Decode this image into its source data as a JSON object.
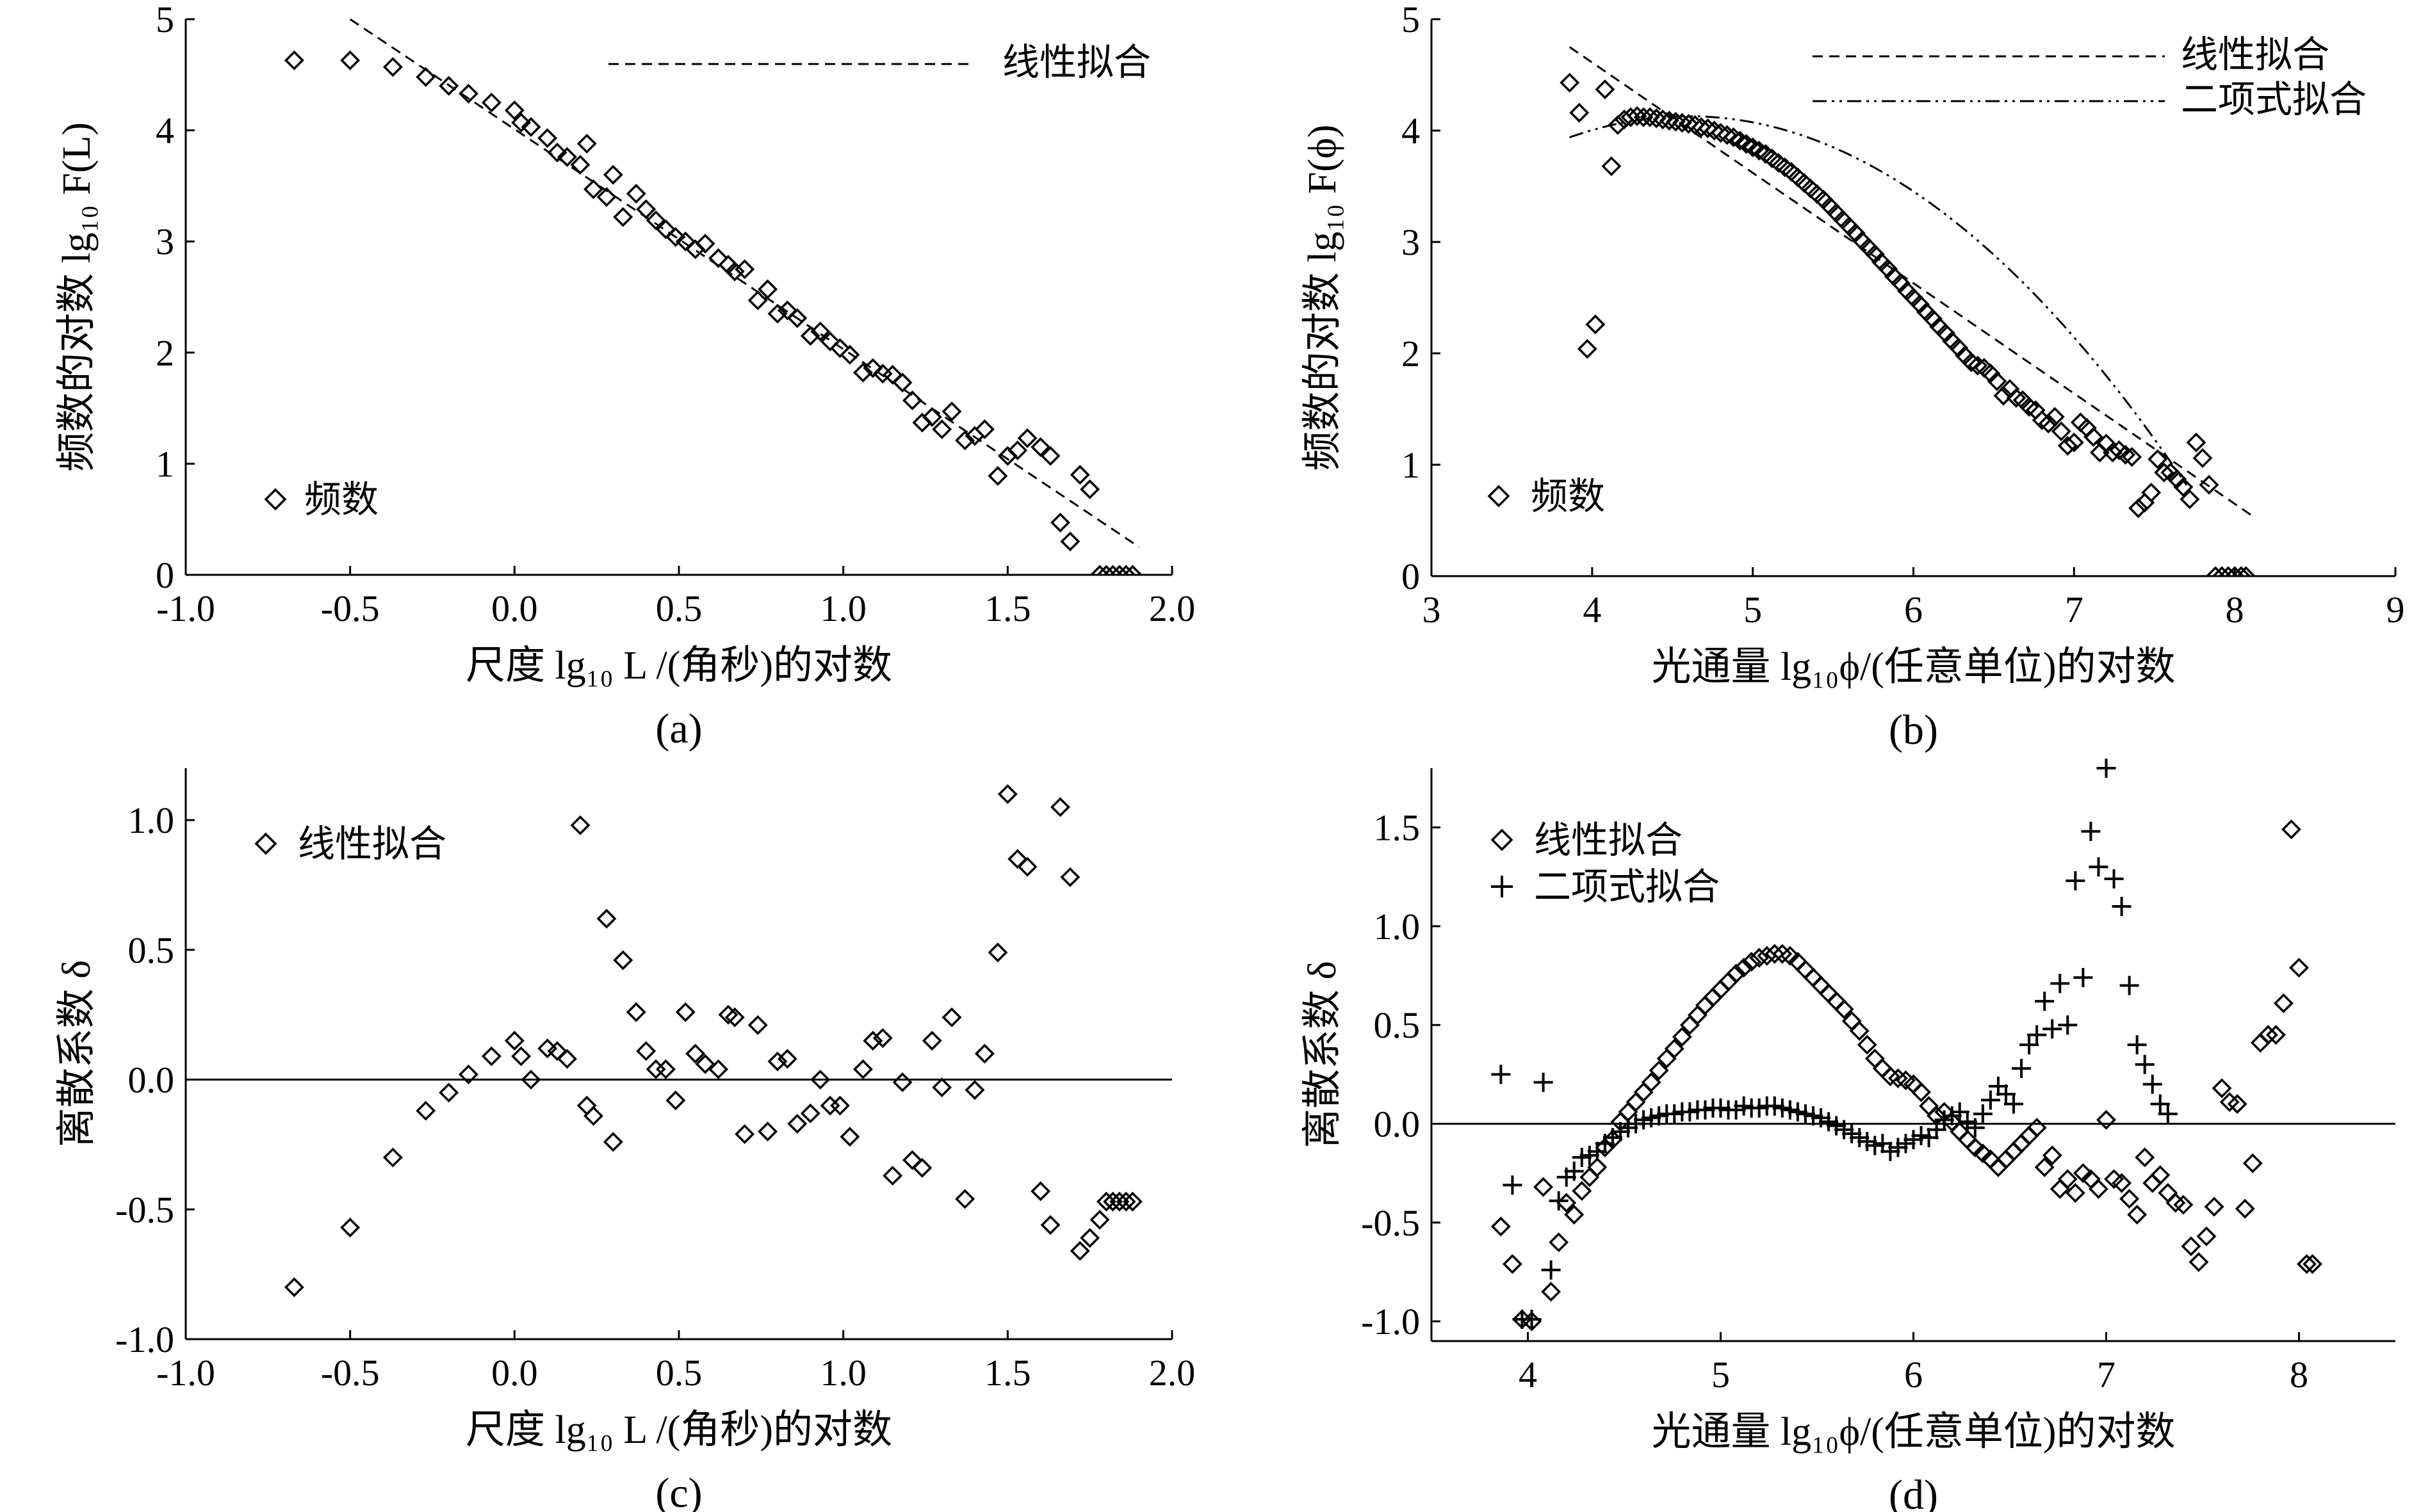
{
  "figure": {
    "panels": [
      {
        "id": "a",
        "caption": "(a)",
        "xlabel": "尺度 lg₁₀ L /(角秒)的对数",
        "ylabel": "频数的对数 lg₁₀ F(L)",
        "xticks": [
          "-1.0",
          "-0.5",
          "0.0",
          "0.5",
          "1.0",
          "1.5",
          "2.0"
        ],
        "yticks": [
          "0",
          "1",
          "2",
          "3",
          "4",
          "5"
        ],
        "legend": {
          "line": "线性拟合",
          "marker": "频数"
        }
      },
      {
        "id": "b",
        "caption": "(b)",
        "xlabel": "光通量 lg₁₀ϕ/(任意单位)的对数",
        "ylabel": "频数的对数 lg₁₀ F(ϕ)",
        "xticks": [
          "3",
          "4",
          "5",
          "6",
          "7",
          "8",
          "9"
        ],
        "yticks": [
          "0",
          "1",
          "2",
          "3",
          "4",
          "5"
        ],
        "legend": {
          "line": "线性拟合",
          "poly": "二项式拟合",
          "marker": "频数"
        }
      },
      {
        "id": "c",
        "caption": "(c)",
        "xlabel": "尺度 lg₁₀ L /(角秒)的对数",
        "ylabel": "离散系数 δ",
        "xticks": [
          "-1.0",
          "-0.5",
          "0.0",
          "0.5",
          "1.0",
          "1.5",
          "2.0"
        ],
        "yticks": [
          "-1.0",
          "-0.5",
          "0.0",
          "0.5",
          "1.0"
        ],
        "legend": {
          "marker": "线性拟合"
        }
      },
      {
        "id": "d",
        "caption": "(d)",
        "xlabel": "光通量 lg₁₀ϕ/(任意单位)的对数",
        "ylabel": "离散系数 δ",
        "xticks": [
          "4",
          "5",
          "6",
          "7",
          "8"
        ],
        "yticks": [
          "-1.0",
          "-0.5",
          "0.0",
          "0.5",
          "1.0",
          "1.5"
        ],
        "legend": {
          "diamond": "线性拟合",
          "plus": "二项式拟合"
        }
      }
    ]
  },
  "chart_data": [
    {
      "id": "a",
      "type": "scatter",
      "xlabel": "尺度 lg10 L /(角秒)的对数",
      "ylabel": "频数的对数 lg10 F(L)",
      "xlim": [
        -1.0,
        2.0
      ],
      "ylim": [
        0,
        5
      ],
      "series": [
        {
          "name": "频数",
          "marker": "diamond",
          "x": [
            -0.67,
            -0.5,
            -0.37,
            -0.27,
            -0.2,
            -0.14,
            -0.07,
            0.0,
            0.02,
            0.05,
            0.1,
            0.13,
            0.16,
            0.2,
            0.22,
            0.24,
            0.28,
            0.3,
            0.33,
            0.37,
            0.4,
            0.43,
            0.46,
            0.49,
            0.52,
            0.55,
            0.58,
            0.62,
            0.65,
            0.67,
            0.7,
            0.74,
            0.77,
            0.8,
            0.83,
            0.86,
            0.9,
            0.93,
            0.96,
            0.99,
            1.02,
            1.06,
            1.09,
            1.12,
            1.15,
            1.18,
            1.21,
            1.24,
            1.27,
            1.3,
            1.33,
            1.37,
            1.4,
            1.43,
            1.47,
            1.5,
            1.53,
            1.56,
            1.6,
            1.63,
            1.66,
            1.69,
            1.72,
            1.75,
            1.78,
            1.8,
            1.82,
            1.84,
            1.86,
            1.88
          ],
          "y": [
            4.63,
            4.63,
            4.57,
            4.48,
            4.4,
            4.33,
            4.25,
            4.18,
            4.07,
            4.03,
            3.93,
            3.8,
            3.76,
            3.69,
            3.88,
            3.47,
            3.4,
            3.6,
            3.22,
            3.43,
            3.29,
            3.19,
            3.11,
            3.04,
            3.0,
            2.93,
            2.98,
            2.85,
            2.79,
            2.73,
            2.75,
            2.47,
            2.57,
            2.35,
            2.38,
            2.31,
            2.15,
            2.19,
            2.1,
            2.04,
            1.98,
            1.82,
            1.86,
            1.81,
            1.8,
            1.73,
            1.57,
            1.37,
            1.42,
            1.31,
            1.47,
            1.21,
            1.25,
            1.31,
            0.89,
            1.07,
            1.12,
            1.23,
            1.15,
            1.07,
            0.47,
            0.3,
            0.9,
            0.77,
            0.0,
            0.0,
            0.0,
            0.0,
            0.0,
            0.0
          ]
        },
        {
          "name": "线性拟合",
          "type": "line",
          "style": "dashed",
          "x": [
            -0.5,
            1.9
          ],
          "y": [
            5.0,
            0.25
          ]
        }
      ]
    },
    {
      "id": "b",
      "type": "scatter",
      "xlabel": "光通量 lg10ϕ/(任意单位)的对数",
      "ylabel": "频数的对数 lg10 F(ϕ)",
      "xlim": [
        3,
        9
      ],
      "ylim": [
        0,
        5
      ],
      "series": [
        {
          "name": "频数",
          "marker": "diamond",
          "x": [
            3.86,
            3.92,
            3.97,
            4.02,
            4.08,
            4.12,
            4.16,
            4.2,
            4.24,
            4.28,
            4.32,
            4.36,
            4.4,
            4.44,
            4.48,
            4.52,
            4.56,
            4.6,
            4.64,
            4.68,
            4.72,
            4.76,
            4.8,
            4.84,
            4.88,
            4.92,
            4.96,
            5.0,
            5.04,
            5.08,
            5.12,
            5.16,
            5.2,
            5.24,
            5.28,
            5.32,
            5.36,
            5.4,
            5.44,
            5.48,
            5.52,
            5.56,
            5.6,
            5.64,
            5.68,
            5.72,
            5.76,
            5.8,
            5.84,
            5.88,
            5.92,
            5.96,
            6.0,
            6.04,
            6.08,
            6.12,
            6.16,
            6.2,
            6.24,
            6.28,
            6.32,
            6.36,
            6.4,
            6.44,
            6.48,
            6.52,
            6.56,
            6.6,
            6.64,
            6.68,
            6.72,
            6.76,
            6.8,
            6.84,
            6.88,
            6.92,
            6.96,
            7.0,
            7.04,
            7.08,
            7.12,
            7.16,
            7.2,
            7.24,
            7.28,
            7.32,
            7.36,
            7.4,
            7.44,
            7.48,
            7.52,
            7.56,
            7.6,
            7.64,
            7.68,
            7.72,
            7.76,
            7.8,
            7.84,
            7.88,
            7.92,
            7.96,
            8.0,
            8.04,
            8.07
          ],
          "y": [
            4.43,
            4.16,
            2.04,
            2.26,
            4.37,
            3.68,
            4.05,
            4.1,
            4.12,
            4.13,
            4.12,
            4.12,
            4.11,
            4.1,
            4.09,
            4.08,
            4.07,
            4.06,
            4.05,
            4.03,
            4.02,
            4.0,
            3.98,
            3.96,
            3.94,
            3.91,
            3.88,
            3.85,
            3.82,
            3.79,
            3.75,
            3.71,
            3.67,
            3.63,
            3.58,
            3.53,
            3.48,
            3.43,
            3.38,
            3.32,
            3.26,
            3.2,
            3.14,
            3.08,
            3.01,
            2.95,
            2.89,
            2.82,
            2.76,
            2.69,
            2.63,
            2.56,
            2.5,
            2.44,
            2.37,
            2.31,
            2.24,
            2.18,
            2.11,
            2.05,
            1.98,
            1.92,
            1.89,
            1.87,
            1.82,
            1.75,
            1.62,
            1.68,
            1.6,
            1.58,
            1.52,
            1.49,
            1.4,
            1.37,
            1.43,
            1.3,
            1.17,
            1.2,
            1.38,
            1.33,
            1.25,
            1.11,
            1.19,
            1.11,
            1.13,
            1.09,
            1.07,
            0.61,
            0.66,
            0.75,
            1.05,
            0.93,
            0.93,
            0.87,
            0.8,
            0.69,
            1.2,
            1.06,
            0.82,
            0.0,
            0.0,
            0.0,
            0.0,
            0.0,
            0.0
          ]
        },
        {
          "name": "线性拟合",
          "type": "line",
          "style": "dashed",
          "x": [
            3.86,
            8.1
          ],
          "y": [
            4.75,
            0.55
          ]
        },
        {
          "name": "二项式拟合",
          "type": "curve",
          "style": "dashdotdot",
          "coefficients": [
            -0.345,
            3.175,
            -3.176
          ]
        }
      ]
    },
    {
      "id": "c",
      "type": "scatter",
      "xlabel": "尺度 lg10 L /(角秒)的对数",
      "ylabel": "离散系数 δ",
      "xlim": [
        -1.0,
        2.0
      ],
      "ylim": [
        -1.0,
        1.2
      ],
      "series": [
        {
          "name": "线性拟合",
          "marker": "diamond",
          "x": [
            -0.67,
            -0.5,
            -0.37,
            -0.27,
            -0.2,
            -0.14,
            -0.07,
            0.0,
            0.02,
            0.05,
            0.1,
            0.13,
            0.16,
            0.2,
            0.22,
            0.24,
            0.28,
            0.3,
            0.33,
            0.37,
            0.4,
            0.43,
            0.46,
            0.49,
            0.52,
            0.55,
            0.58,
            0.62,
            0.65,
            0.67,
            0.7,
            0.74,
            0.77,
            0.8,
            0.83,
            0.86,
            0.9,
            0.93,
            0.96,
            0.99,
            1.02,
            1.06,
            1.09,
            1.12,
            1.15,
            1.18,
            1.21,
            1.24,
            1.27,
            1.3,
            1.33,
            1.37,
            1.4,
            1.43,
            1.47,
            1.5,
            1.53,
            1.56,
            1.6,
            1.63,
            1.66,
            1.69,
            1.72,
            1.75,
            1.78,
            1.8,
            1.82,
            1.84,
            1.86,
            1.88
          ],
          "y": [
            -0.8,
            -0.57,
            -0.3,
            -0.12,
            -0.05,
            0.02,
            0.09,
            0.15,
            0.09,
            0.0,
            0.12,
            0.11,
            0.08,
            0.98,
            -0.1,
            -0.14,
            0.62,
            -0.24,
            0.46,
            0.26,
            0.11,
            0.04,
            0.04,
            -0.08,
            0.26,
            0.1,
            0.06,
            0.04,
            0.25,
            0.24,
            -0.21,
            0.21,
            -0.2,
            0.07,
            0.08,
            -0.17,
            -0.13,
            0.0,
            -0.1,
            -0.1,
            -0.22,
            0.04,
            0.15,
            0.16,
            -0.37,
            -0.01,
            -0.31,
            -0.34,
            0.15,
            -0.03,
            0.24,
            -0.46,
            -0.04,
            0.1,
            0.49,
            1.1,
            0.85,
            0.82,
            -0.43,
            -0.56,
            1.05,
            0.78,
            -0.66,
            -0.61,
            -0.54,
            -0.47,
            -0.47,
            -0.47,
            -0.47,
            -0.47
          ]
        }
      ]
    },
    {
      "id": "d",
      "type": "scatter",
      "xlabel": "光通量 lg10ϕ/(任意单位)的对数",
      "ylabel": "离散系数 δ",
      "xlim": [
        3.5,
        8.5
      ],
      "ylim": [
        -1.1,
        1.8
      ],
      "series": [
        {
          "name": "线性拟合",
          "marker": "diamond",
          "x": [
            3.86,
            3.92,
            3.97,
            4.02,
            4.08,
            4.12,
            4.16,
            4.2,
            4.24,
            4.28,
            4.32,
            4.36,
            4.4,
            4.44,
            4.48,
            4.52,
            4.56,
            4.6,
            4.64,
            4.68,
            4.72,
            4.76,
            4.8,
            4.84,
            4.88,
            4.92,
            4.96,
            5.0,
            5.04,
            5.08,
            5.12,
            5.16,
            5.2,
            5.24,
            5.28,
            5.32,
            5.36,
            5.4,
            5.44,
            5.48,
            5.52,
            5.56,
            5.6,
            5.64,
            5.68,
            5.72,
            5.76,
            5.8,
            5.84,
            5.88,
            5.92,
            5.96,
            6.0,
            6.04,
            6.08,
            6.12,
            6.16,
            6.2,
            6.24,
            6.28,
            6.32,
            6.36,
            6.4,
            6.44,
            6.48,
            6.52,
            6.56,
            6.6,
            6.64,
            6.68,
            6.72,
            6.76,
            6.8,
            6.84,
            6.88,
            6.92,
            6.96,
            7.0,
            7.04,
            7.08,
            7.12,
            7.16,
            7.2,
            7.24,
            7.28,
            7.32,
            7.36,
            7.4,
            7.44,
            7.48,
            7.52,
            7.56,
            7.6,
            7.64,
            7.68,
            7.72,
            7.76,
            7.8,
            7.84,
            7.88,
            7.92,
            7.96,
            8.0,
            8.04,
            8.07
          ],
          "y": [
            -0.52,
            -0.71,
            -0.99,
            -1.0,
            -0.32,
            -0.85,
            -0.6,
            -0.4,
            -0.46,
            -0.34,
            -0.27,
            -0.22,
            -0.12,
            -0.08,
            0.01,
            0.06,
            0.11,
            0.16,
            0.21,
            0.27,
            0.33,
            0.38,
            0.44,
            0.5,
            0.55,
            0.6,
            0.64,
            0.68,
            0.72,
            0.76,
            0.79,
            0.82,
            0.84,
            0.85,
            0.86,
            0.86,
            0.85,
            0.82,
            0.78,
            0.74,
            0.7,
            0.66,
            0.62,
            0.58,
            0.52,
            0.47,
            0.4,
            0.33,
            0.28,
            0.24,
            0.23,
            0.22,
            0.2,
            0.16,
            0.09,
            0.04,
            0.06,
            0.01,
            -0.04,
            -0.08,
            -0.12,
            -0.15,
            -0.18,
            -0.22,
            -0.18,
            -0.14,
            -0.1,
            -0.06,
            -0.02,
            -0.22,
            -0.16,
            -0.33,
            -0.28,
            -0.35,
            -0.25,
            -0.28,
            -0.33,
            0.02,
            -0.28,
            -0.3,
            -0.38,
            -0.46,
            -0.17,
            -0.3,
            -0.26,
            -0.35,
            -0.4,
            -0.41,
            -0.62,
            -0.7,
            -0.57,
            -0.42,
            0.18,
            0.11,
            0.1,
            -0.43,
            -0.2,
            0.41,
            0.45,
            0.45,
            0.61,
            1.49,
            0.79,
            -0.71,
            -0.71
          ]
        },
        {
          "name": "二项式拟合",
          "marker": "plus",
          "x": [
            3.86,
            3.92,
            3.97,
            4.02,
            4.08,
            4.12,
            4.16,
            4.2,
            4.24,
            4.28,
            4.32,
            4.36,
            4.4,
            4.44,
            4.48,
            4.52,
            4.56,
            4.6,
            4.64,
            4.68,
            4.72,
            4.76,
            4.8,
            4.84,
            4.88,
            4.92,
            4.96,
            5.0,
            5.04,
            5.08,
            5.12,
            5.16,
            5.2,
            5.24,
            5.28,
            5.32,
            5.36,
            5.4,
            5.44,
            5.48,
            5.52,
            5.56,
            5.6,
            5.64,
            5.68,
            5.72,
            5.76,
            5.8,
            5.84,
            5.88,
            5.92,
            5.96,
            6.0,
            6.04,
            6.08,
            6.12,
            6.16,
            6.2,
            6.24,
            6.28,
            6.32,
            6.36,
            6.4,
            6.44,
            6.48,
            6.52,
            6.56,
            6.6,
            6.64,
            6.68,
            6.72,
            6.76,
            6.8,
            6.84,
            6.88,
            6.92,
            6.96,
            7.0,
            7.04,
            7.08,
            7.12,
            7.16,
            7.2,
            7.24,
            7.28,
            7.32
          ],
          "y": [
            0.25,
            -0.31,
            -0.99,
            -0.99,
            0.21,
            -0.74,
            -0.39,
            -0.27,
            -0.24,
            -0.17,
            -0.16,
            -0.14,
            -0.1,
            -0.07,
            -0.04,
            -0.02,
            0.0,
            0.02,
            0.03,
            0.04,
            0.05,
            0.05,
            0.06,
            0.06,
            0.07,
            0.07,
            0.08,
            0.08,
            0.07,
            0.07,
            0.09,
            0.08,
            0.08,
            0.09,
            0.09,
            0.08,
            0.07,
            0.06,
            0.05,
            0.04,
            0.03,
            0.01,
            -0.01,
            -0.03,
            -0.05,
            -0.07,
            -0.09,
            -0.11,
            -0.1,
            -0.14,
            -0.12,
            -0.1,
            -0.08,
            -0.06,
            -0.07,
            -0.03,
            0.02,
            0.04,
            0.06,
            0.01,
            -0.02,
            0.05,
            0.12,
            0.19,
            0.15,
            0.1,
            0.28,
            0.4,
            0.45,
            0.62,
            0.48,
            0.71,
            0.5,
            1.23,
            0.74,
            1.48,
            1.3,
            1.8,
            1.24,
            1.1,
            0.7,
            0.4,
            0.3,
            0.2,
            0.1,
            0.05
          ]
        }
      ]
    }
  ]
}
